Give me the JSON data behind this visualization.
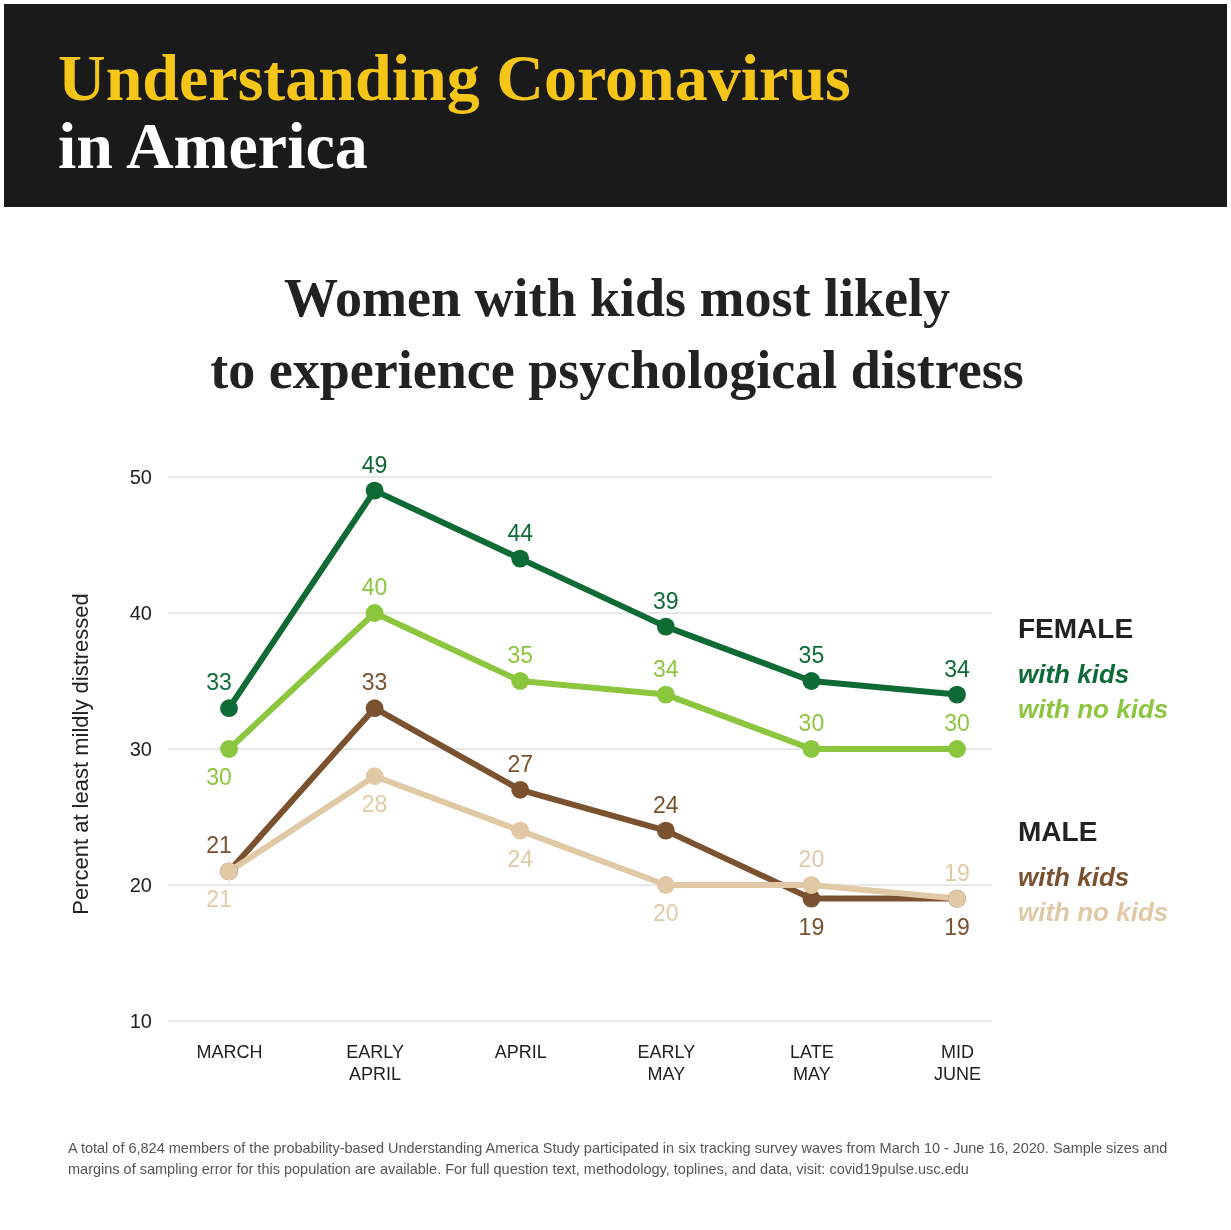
{
  "chart_data": {
    "type": "line",
    "title": "Understanding Coronavirus in America",
    "subtitle": "Women with kids most likely to experience psychological distress",
    "ylabel": "Percent at least mildly distressed",
    "categories": [
      "MARCH",
      "EARLY APRIL",
      "APRIL",
      "EARLY MAY",
      "LATE MAY",
      "MID JUNE"
    ],
    "series": [
      {
        "name": "with kids",
        "color": "#0e6b36",
        "values": [
          33,
          49,
          44,
          39,
          35,
          34
        ]
      },
      {
        "name": "with no kids",
        "color": "#8cc63f",
        "values": [
          30,
          40,
          35,
          34,
          30,
          30
        ]
      },
      {
        "name": "with kids",
        "color": "#7b5230",
        "values": [
          21,
          33,
          27,
          24,
          19,
          19
        ]
      },
      {
        "name": "with no kids",
        "color": "#e2c9a6",
        "values": [
          21,
          28,
          24,
          20,
          20,
          19
        ]
      }
    ],
    "ylim": [
      10,
      50
    ],
    "yticks": [
      10,
      20,
      30,
      40,
      50
    ],
    "grid": "y",
    "legend": "right",
    "marker": "circle",
    "line_style": "solid",
    "data_labels": true,
    "annotations": [
      "FEMALE",
      "MALE",
      "A total of 6,824 members of the probability-based Understanding America Study participated in six tracking survey waves from March 10 - June 16, 2020. Sample sizes and margins of sampling error for this population are available. For full question text, methodology, toplines, and data, visit: covid19pulse.usc.edu"
    ]
  }
}
